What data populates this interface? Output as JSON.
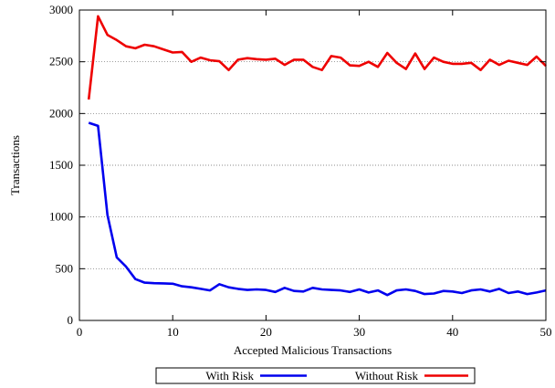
{
  "chart_data": {
    "type": "line",
    "title": "",
    "xlabel": "Accepted Malicious Transactions",
    "ylabel": "Transactions",
    "xlim": [
      0,
      50
    ],
    "ylim": [
      0,
      3000
    ],
    "xticks": [
      0,
      10,
      20,
      30,
      40,
      50
    ],
    "yticks": [
      0,
      500,
      1000,
      1500,
      2000,
      2500,
      3000
    ],
    "grid": "horizontal dotted",
    "legend_position": "bottom",
    "series": [
      {
        "name": "With Risk",
        "color": "#0000ee",
        "x": [
          1,
          2,
          3,
          4,
          5,
          6,
          7,
          8,
          9,
          10,
          11,
          12,
          13,
          14,
          15,
          16,
          17,
          18,
          19,
          20,
          21,
          22,
          23,
          24,
          25,
          26,
          27,
          28,
          29,
          30,
          31,
          32,
          33,
          34,
          35,
          36,
          37,
          38,
          39,
          40,
          41,
          42,
          43,
          44,
          45,
          46,
          47,
          48,
          49,
          50
        ],
        "values": [
          1910,
          1880,
          1020,
          610,
          520,
          400,
          365,
          360,
          358,
          355,
          330,
          320,
          305,
          290,
          350,
          320,
          305,
          295,
          300,
          295,
          275,
          315,
          285,
          280,
          315,
          300,
          295,
          290,
          275,
          300,
          270,
          290,
          245,
          290,
          300,
          285,
          255,
          260,
          285,
          280,
          265,
          290,
          300,
          280,
          305,
          265,
          280,
          255,
          270,
          290
        ]
      },
      {
        "name": "Without Risk",
        "color": "#ee0000",
        "x": [
          1,
          2,
          3,
          4,
          5,
          6,
          7,
          8,
          9,
          10,
          11,
          12,
          13,
          14,
          15,
          16,
          17,
          18,
          19,
          20,
          21,
          22,
          23,
          24,
          25,
          26,
          27,
          28,
          29,
          30,
          31,
          32,
          33,
          34,
          35,
          36,
          37,
          38,
          39,
          40,
          41,
          42,
          43,
          44,
          45,
          46,
          47,
          48,
          49,
          50
        ],
        "values": [
          2135,
          2940,
          2760,
          2710,
          2650,
          2630,
          2665,
          2650,
          2620,
          2590,
          2595,
          2500,
          2540,
          2515,
          2505,
          2420,
          2520,
          2535,
          2525,
          2520,
          2530,
          2470,
          2520,
          2520,
          2450,
          2420,
          2555,
          2540,
          2465,
          2460,
          2500,
          2450,
          2585,
          2490,
          2430,
          2580,
          2430,
          2540,
          2500,
          2480,
          2480,
          2490,
          2420,
          2520,
          2470,
          2510,
          2490,
          2470,
          2550,
          2460
        ]
      }
    ]
  }
}
